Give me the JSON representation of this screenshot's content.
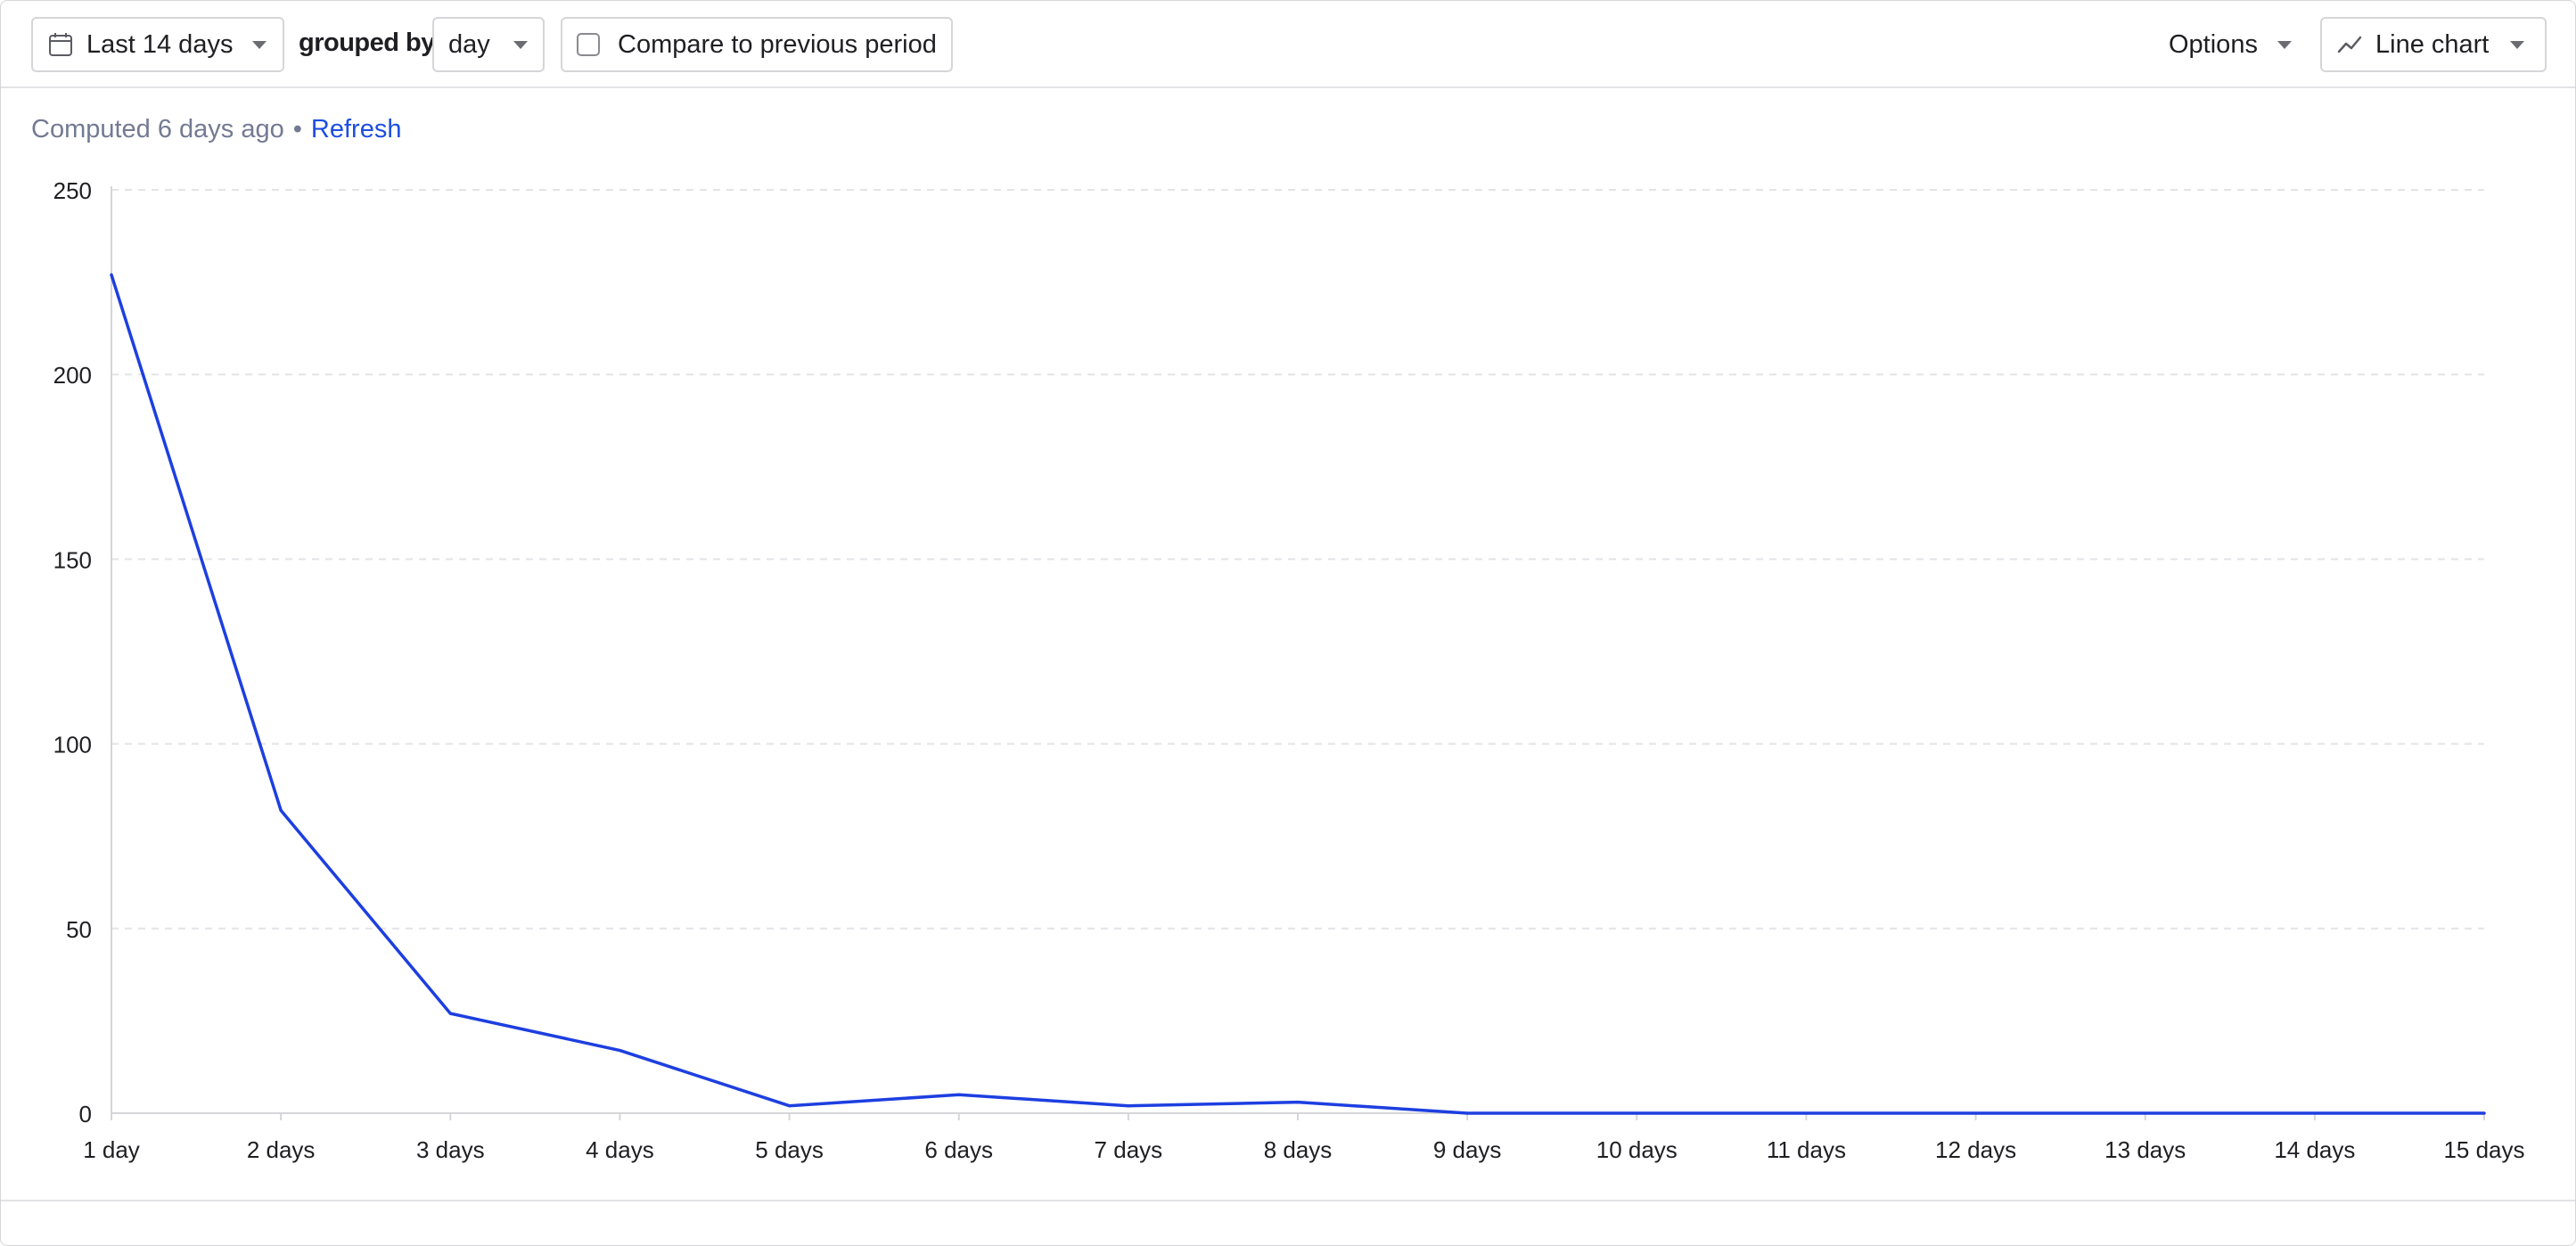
{
  "toolbar": {
    "date_range": "Last 14 days",
    "grouped_by_label": "grouped by",
    "interval": "day",
    "compare_label": "Compare to previous period",
    "compare_checked": false,
    "options_label": "Options",
    "display_label": "Line chart"
  },
  "status": {
    "computed_text": "Computed 6 days ago",
    "separator": "•",
    "refresh_label": "Refresh"
  },
  "colors": {
    "series": "#1d3fe0",
    "link": "#1d4ee0"
  },
  "chart_data": {
    "type": "line",
    "categories": [
      "1 day",
      "2 days",
      "3 days",
      "4 days",
      "5 days",
      "6 days",
      "7 days",
      "8 days",
      "9 days",
      "10 days",
      "11 days",
      "12 days",
      "13 days",
      "14 days",
      "15 days"
    ],
    "values": [
      227,
      82,
      27,
      17,
      2,
      5,
      2,
      3,
      0,
      0,
      0,
      0,
      0,
      0,
      0
    ],
    "ylim": [
      0,
      250
    ],
    "yticks": [
      0,
      50,
      100,
      150,
      200,
      250
    ],
    "grid": true,
    "grid_style": "dashed horizontal",
    "legend": "none"
  }
}
